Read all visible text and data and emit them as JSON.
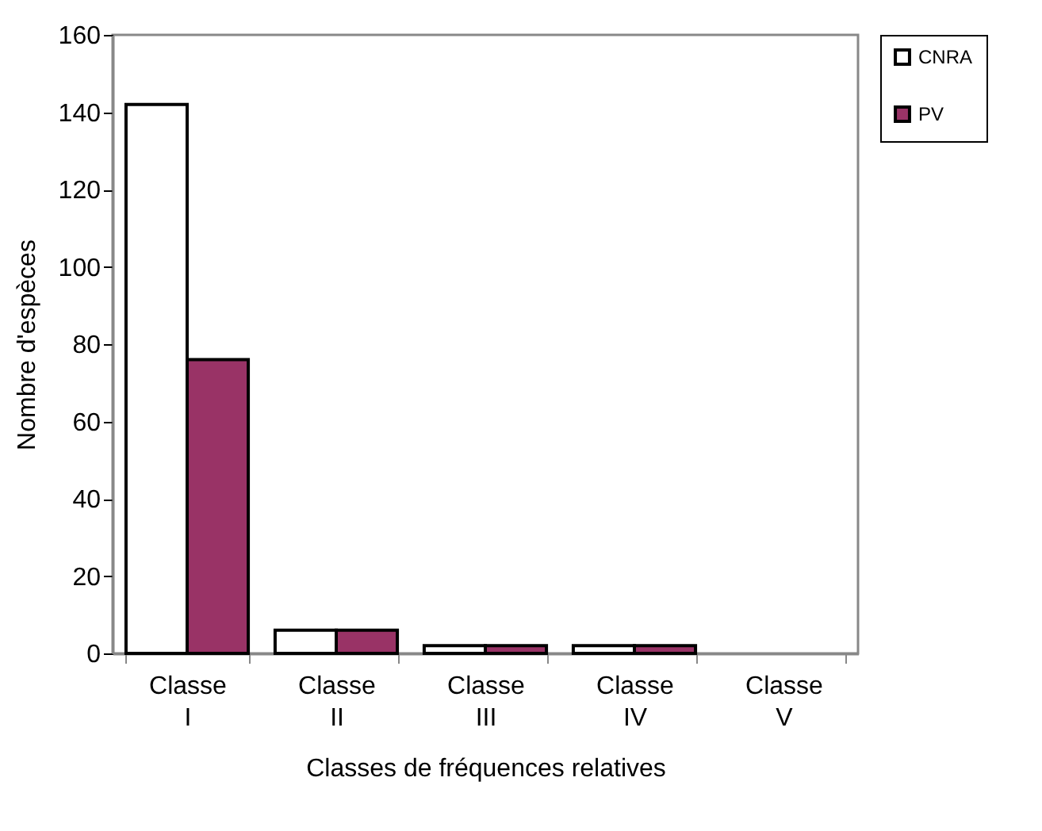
{
  "chart_data": {
    "type": "bar",
    "xlabel": "Classes de fréquences relatives",
    "ylabel": "Nombre d'espèces",
    "categories": [
      "Classe I",
      "Classe II",
      "Classe III",
      "Classe IV",
      "Classe V"
    ],
    "series": [
      {
        "name": "CNRA",
        "color": "#ffffff",
        "values": [
          142,
          6,
          2,
          2,
          0
        ]
      },
      {
        "name": "PV",
        "color": "#993366",
        "values": [
          76,
          6,
          2,
          2,
          0
        ]
      }
    ],
    "ylim": [
      0,
      160
    ],
    "yticks": [
      0,
      20,
      40,
      60,
      80,
      100,
      120,
      140,
      160
    ],
    "grid": false,
    "legend": "right"
  }
}
